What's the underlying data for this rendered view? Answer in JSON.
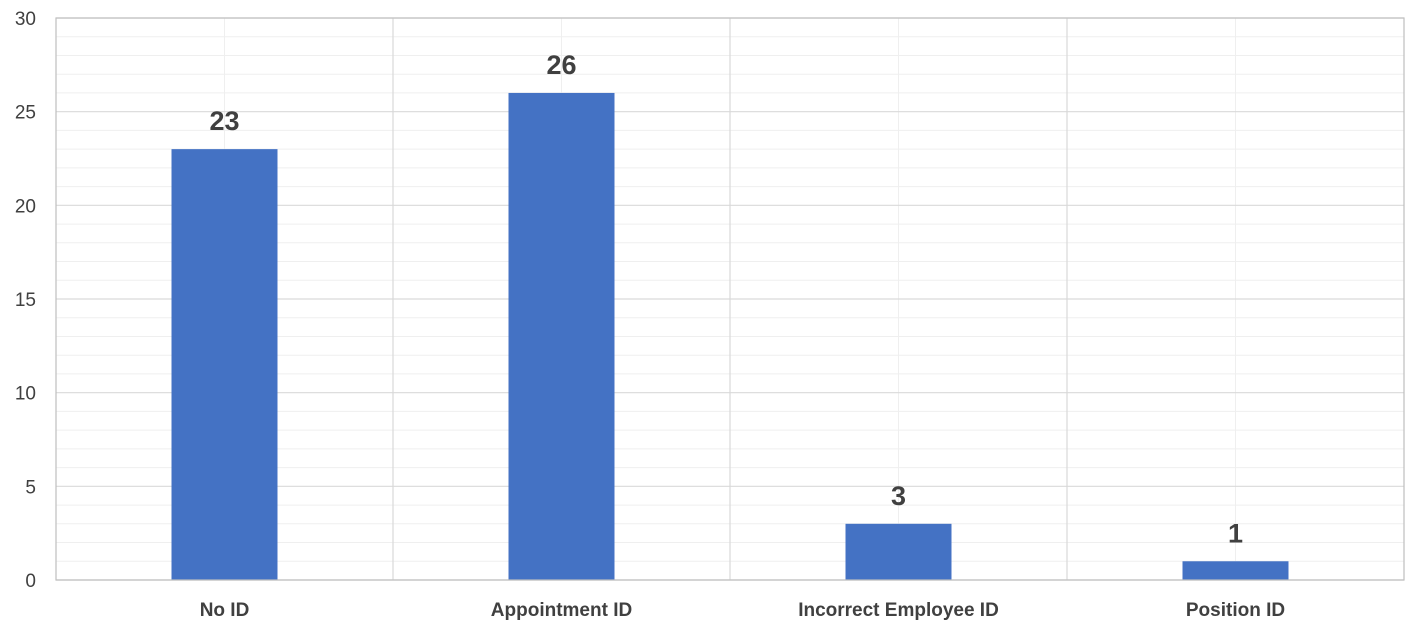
{
  "chart_data": {
    "type": "bar",
    "title": "",
    "xlabel": "",
    "ylabel": "",
    "categories": [
      "No ID",
      "Appointment ID",
      "Incorrect Employee ID",
      "Position ID"
    ],
    "values": [
      23,
      26,
      3,
      1
    ],
    "data_labels": [
      "23",
      "26",
      "3",
      "1"
    ],
    "ylim": [
      0,
      30
    ],
    "yticks": [
      0,
      5,
      10,
      15,
      20,
      25,
      30
    ],
    "minor_step": 1,
    "grid": true,
    "legend": "none",
    "colors": {
      "bar": "#4472C4",
      "major_grid": "#d9d9d9",
      "minor_grid": "#efefef",
      "axis": "#bfbfbf",
      "text": "#404040"
    }
  }
}
